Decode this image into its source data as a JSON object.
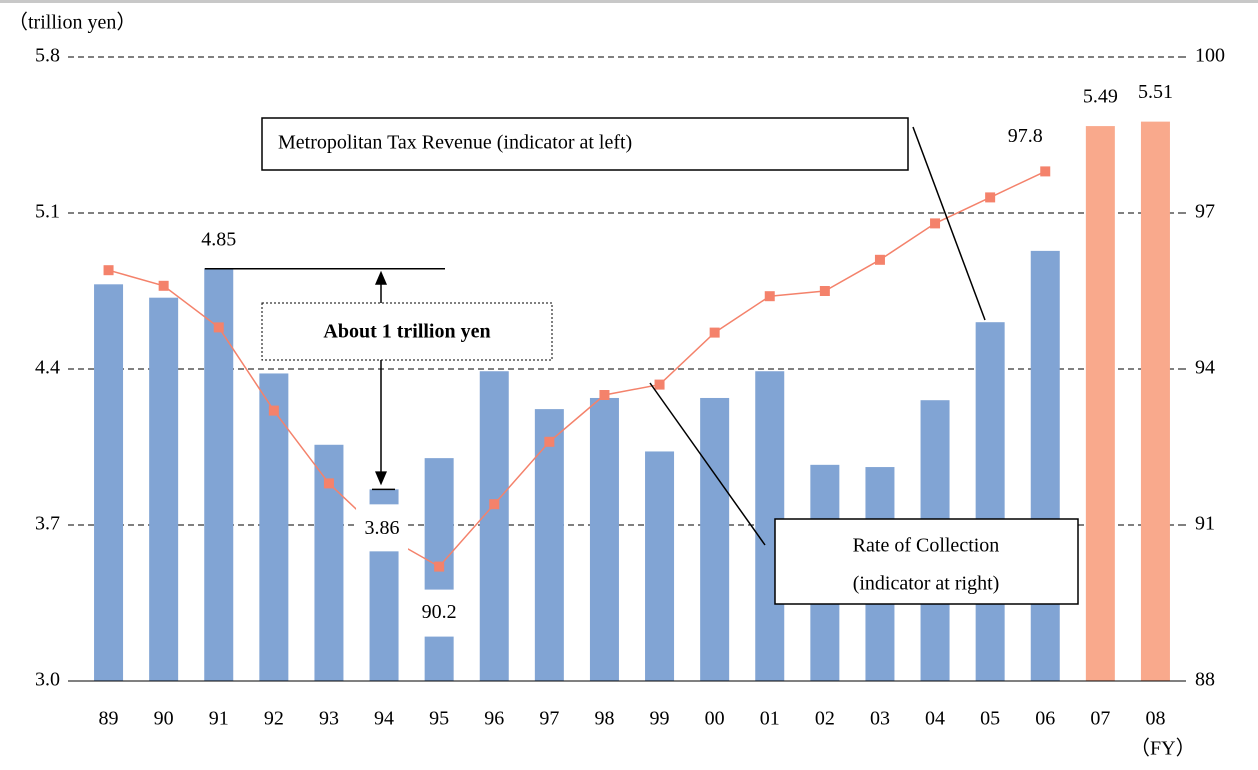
{
  "chart_data": {
    "type": "bar",
    "y_label": "（trillion yen）",
    "x_label": "（FY）",
    "categories": [
      "89",
      "90",
      "91",
      "92",
      "93",
      "94",
      "95",
      "96",
      "97",
      "98",
      "99",
      "00",
      "01",
      "02",
      "03",
      "04",
      "05",
      "06",
      "07",
      "08"
    ],
    "series": [
      {
        "name": "Metropolitan Tax Revenue (indicator at left)",
        "type": "bar",
        "colors": [
          "#81a4d4",
          "#81a4d4",
          "#81a4d4",
          "#81a4d4",
          "#81a4d4",
          "#81a4d4",
          "#81a4d4",
          "#81a4d4",
          "#81a4d4",
          "#81a4d4",
          "#81a4d4",
          "#81a4d4",
          "#81a4d4",
          "#81a4d4",
          "#81a4d4",
          "#81a4d4",
          "#81a4d4",
          "#81a4d4",
          "#f9a98c",
          "#f9a98c"
        ],
        "values": [
          4.78,
          4.72,
          4.85,
          4.38,
          4.06,
          3.86,
          4.0,
          4.39,
          4.22,
          4.27,
          4.03,
          4.27,
          4.39,
          3.97,
          3.96,
          4.26,
          4.61,
          4.93,
          5.49,
          5.51
        ],
        "labeled_indices": [
          2,
          5,
          18,
          19
        ]
      },
      {
        "name": [
          "Rate of Collection",
          "(indicator at right)"
        ],
        "type": "line",
        "axis": "y2",
        "color": "#f4826b",
        "values": [
          95.9,
          95.6,
          94.8,
          93.2,
          91.8,
          90.8,
          90.2,
          91.4,
          92.6,
          93.5,
          93.7,
          94.7,
          95.4,
          95.5,
          96.1,
          96.8,
          97.3,
          97.8,
          null,
          null
        ],
        "labeled_indices": [
          6,
          17
        ]
      }
    ],
    "ylim": [
      3.0,
      5.8
    ],
    "yticks": [
      {
        "value": 3.0,
        "label": "3.0"
      },
      3.7,
      4.4,
      5.1,
      5.8
    ],
    "y2lim": [
      88,
      100
    ],
    "y2ticks": [
      88,
      91,
      94,
      97,
      100
    ],
    "grid": true,
    "annotation": "About 1 trillion yen"
  }
}
